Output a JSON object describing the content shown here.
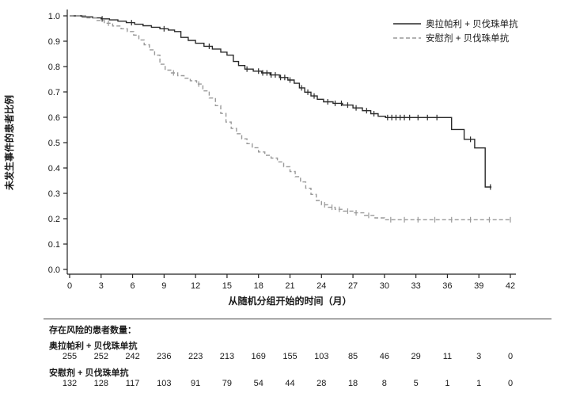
{
  "chart_data": {
    "type": "line",
    "subtype": "kaplan-meier-step",
    "title": "",
    "xlabel": "从随机分组开始的时间（月）",
    "ylabel": "未发生事件的患者比例",
    "xlim": [
      0,
      42
    ],
    "ylim": [
      0.0,
      1.0
    ],
    "x_ticks": [
      0,
      3,
      6,
      9,
      12,
      15,
      18,
      21,
      24,
      27,
      30,
      33,
      36,
      39,
      42
    ],
    "y_ticks": [
      0.0,
      0.1,
      0.2,
      0.3,
      0.4,
      0.5,
      0.6,
      0.7,
      0.8,
      0.9,
      1.0
    ],
    "grid": false,
    "legend_position": "top-right",
    "axis_color": "#222222",
    "series": [
      {
        "name": "奥拉帕利 + 贝伐珠单抗",
        "style": "solid",
        "color": "#2a2a2a",
        "points": [
          [
            0,
            1.0
          ],
          [
            1.2,
            0.996
          ],
          [
            2.2,
            0.992
          ],
          [
            3.0,
            0.988
          ],
          [
            3.8,
            0.984
          ],
          [
            4.6,
            0.979
          ],
          [
            5.4,
            0.973
          ],
          [
            6.2,
            0.967
          ],
          [
            7.0,
            0.961
          ],
          [
            7.8,
            0.955
          ],
          [
            8.6,
            0.949
          ],
          [
            9.4,
            0.944
          ],
          [
            10.0,
            0.938
          ],
          [
            10.6,
            0.915
          ],
          [
            11.3,
            0.903
          ],
          [
            12.0,
            0.892
          ],
          [
            12.8,
            0.88
          ],
          [
            13.6,
            0.869
          ],
          [
            14.4,
            0.857
          ],
          [
            15.0,
            0.845
          ],
          [
            15.6,
            0.82
          ],
          [
            16.1,
            0.804
          ],
          [
            16.7,
            0.79
          ],
          [
            17.5,
            0.782
          ],
          [
            18.3,
            0.775
          ],
          [
            19.1,
            0.767
          ],
          [
            20.0,
            0.757
          ],
          [
            20.8,
            0.747
          ],
          [
            21.4,
            0.734
          ],
          [
            21.9,
            0.716
          ],
          [
            22.4,
            0.699
          ],
          [
            23.0,
            0.684
          ],
          [
            23.6,
            0.671
          ],
          [
            24.2,
            0.661
          ],
          [
            25.1,
            0.655
          ],
          [
            26.0,
            0.648
          ],
          [
            27.0,
            0.637
          ],
          [
            27.9,
            0.626
          ],
          [
            28.7,
            0.614
          ],
          [
            29.4,
            0.604
          ],
          [
            30.1,
            0.599
          ],
          [
            36.4,
            0.552
          ],
          [
            37.6,
            0.513
          ],
          [
            38.6,
            0.479
          ],
          [
            39.6,
            0.325
          ],
          [
            40.2,
            0.325
          ]
        ],
        "censor_times": [
          3.1,
          5.9,
          9.0,
          13.3,
          16.9,
          18.0,
          18.4,
          18.8,
          19.2,
          19.6,
          20.1,
          20.5,
          21.0,
          22.1,
          22.7,
          23.3,
          24.6,
          25.3,
          25.9,
          26.5,
          27.3,
          28.3,
          29.0,
          30.3,
          30.7,
          31.1,
          31.5,
          31.9,
          32.4,
          33.2,
          34.1,
          35.0,
          38.2,
          40.1
        ]
      },
      {
        "name": "安慰剂 + 贝伐珠单抗",
        "style": "dashed",
        "color": "#999999",
        "points": [
          [
            0,
            1.0
          ],
          [
            1.6,
            0.992
          ],
          [
            2.6,
            0.982
          ],
          [
            3.3,
            0.971
          ],
          [
            4.1,
            0.96
          ],
          [
            4.9,
            0.949
          ],
          [
            5.5,
            0.938
          ],
          [
            6.1,
            0.924
          ],
          [
            6.6,
            0.905
          ],
          [
            7.1,
            0.886
          ],
          [
            7.6,
            0.866
          ],
          [
            8.1,
            0.845
          ],
          [
            8.6,
            0.809
          ],
          [
            9.1,
            0.786
          ],
          [
            9.7,
            0.775
          ],
          [
            10.3,
            0.764
          ],
          [
            10.9,
            0.754
          ],
          [
            11.5,
            0.744
          ],
          [
            12.1,
            0.731
          ],
          [
            12.7,
            0.704
          ],
          [
            13.3,
            0.676
          ],
          [
            13.9,
            0.646
          ],
          [
            14.4,
            0.615
          ],
          [
            14.9,
            0.581
          ],
          [
            15.4,
            0.556
          ],
          [
            15.9,
            0.535
          ],
          [
            16.4,
            0.515
          ],
          [
            16.9,
            0.496
          ],
          [
            17.4,
            0.48
          ],
          [
            18.0,
            0.463
          ],
          [
            18.6,
            0.45
          ],
          [
            19.2,
            0.439
          ],
          [
            19.8,
            0.424
          ],
          [
            20.4,
            0.405
          ],
          [
            21.0,
            0.386
          ],
          [
            21.5,
            0.366
          ],
          [
            22.0,
            0.345
          ],
          [
            22.5,
            0.32
          ],
          [
            23.0,
            0.296
          ],
          [
            23.5,
            0.272
          ],
          [
            24.0,
            0.255
          ],
          [
            24.6,
            0.245
          ],
          [
            25.3,
            0.237
          ],
          [
            26.1,
            0.23
          ],
          [
            27.1,
            0.223
          ],
          [
            28.1,
            0.213
          ],
          [
            29.1,
            0.203
          ],
          [
            30.0,
            0.196
          ],
          [
            42.0,
            0.196
          ]
        ],
        "censor_times": [
          3.7,
          9.9,
          12.3,
          24.3,
          25.0,
          25.7,
          26.5,
          27.3,
          28.5,
          30.6,
          31.9,
          33.2,
          34.8,
          36.4,
          38.2,
          40.0,
          42.0
        ]
      }
    ]
  },
  "risk_table": {
    "header": "存在风险的患者数量：",
    "time_points": [
      0,
      3,
      6,
      9,
      12,
      15,
      18,
      21,
      24,
      27,
      30,
      33,
      36,
      39,
      42
    ],
    "rows": [
      {
        "label": "奥拉帕利 + 贝伐珠单抗",
        "counts": [
          "255",
          "252",
          "242",
          "236",
          "223",
          "213",
          "169",
          "155",
          "103",
          "85",
          "46",
          "29",
          "11",
          "3",
          "0"
        ]
      },
      {
        "label": "安慰剂 + 贝伐珠单抗",
        "counts": [
          "132",
          "128",
          "117",
          "103",
          "91",
          "79",
          "54",
          "44",
          "28",
          "18",
          "8",
          "5",
          "1",
          "1",
          "0"
        ]
      }
    ]
  }
}
